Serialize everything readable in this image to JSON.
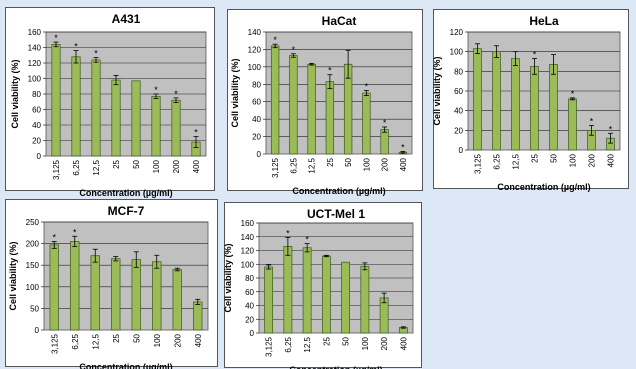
{
  "background": "#dde8f6",
  "plot_bg": "#c0c0c0",
  "bar_color": "#9bbb59",
  "bar_border": "#3a5a1a",
  "chart_data": [
    {
      "type": "bar",
      "title": "A431",
      "xlabel": "Concentration (µg/ml)",
      "ylabel": "Cell viability (%)",
      "categories": [
        "3,125",
        "6,25",
        "12,5",
        "25",
        "50",
        "100",
        "200",
        "400"
      ],
      "values": [
        144,
        128,
        124,
        98,
        97,
        77,
        72,
        18
      ],
      "errors": [
        3,
        8,
        3,
        6,
        0,
        3,
        3,
        7
      ],
      "significant": [
        true,
        true,
        true,
        false,
        false,
        true,
        true,
        true
      ],
      "ylim": [
        0,
        160
      ],
      "yticks": [
        0,
        20,
        40,
        60,
        80,
        100,
        120,
        140,
        160
      ],
      "grid": true
    },
    {
      "type": "bar",
      "title": "HaCat",
      "xlabel": "Concentration (µg/ml)",
      "ylabel": "Cell viability (%)",
      "categories": [
        "3,125",
        "6,25",
        "12,5",
        "25",
        "50",
        "100",
        "200",
        "400"
      ],
      "values": [
        124,
        113,
        103,
        83,
        103,
        70,
        28,
        2
      ],
      "errors": [
        2,
        2,
        1,
        8,
        16,
        3,
        3,
        1
      ],
      "significant": [
        true,
        true,
        false,
        true,
        false,
        true,
        true,
        true
      ],
      "ylim": [
        0,
        140
      ],
      "yticks": [
        0,
        20,
        40,
        60,
        80,
        100,
        120,
        140
      ],
      "grid": true
    },
    {
      "type": "bar",
      "title": "HeLa",
      "xlabel": "Concentration (µg/ml)",
      "ylabel": "Cell viability (%)",
      "categories": [
        "3,125",
        "6,25",
        "12,5",
        "25",
        "50",
        "100",
        "200",
        "400"
      ],
      "values": [
        103,
        100,
        93,
        85,
        87,
        52,
        20,
        12
      ],
      "errors": [
        5,
        6,
        7,
        8,
        10,
        1,
        5,
        5
      ],
      "significant": [
        false,
        false,
        false,
        true,
        false,
        true,
        true,
        true
      ],
      "ylim": [
        0,
        120
      ],
      "yticks": [
        0,
        20,
        40,
        60,
        80,
        100,
        120
      ],
      "grid": true
    },
    {
      "type": "bar",
      "title": "MCF-7",
      "xlabel": "Concentration (µg/ml)",
      "ylabel": "Cell viability (%)",
      "categories": [
        "3,125",
        "6,25",
        "12,5",
        "25",
        "50",
        "100",
        "200",
        "400"
      ],
      "values": [
        197,
        205,
        172,
        165,
        163,
        158,
        140,
        65
      ],
      "errors": [
        8,
        12,
        15,
        5,
        18,
        15,
        3,
        6
      ],
      "significant": [
        true,
        true,
        false,
        false,
        false,
        false,
        false,
        false
      ],
      "ylim": [
        0,
        250
      ],
      "yticks": [
        0,
        50,
        100,
        150,
        200,
        250
      ],
      "grid": true
    },
    {
      "type": "bar",
      "title": "UCT-Mel 1",
      "xlabel": "Concentration (µg/ml)",
      "ylabel": "Cell viability (%)",
      "categories": [
        "3,125",
        "6,25",
        "12,5",
        "25",
        "50",
        "100",
        "200",
        "400"
      ],
      "values": [
        96,
        126,
        124,
        112,
        103,
        97,
        51,
        8
      ],
      "errors": [
        3,
        13,
        6,
        1,
        0,
        5,
        7,
        1
      ],
      "significant": [
        false,
        true,
        true,
        false,
        false,
        false,
        false,
        false
      ],
      "ylim": [
        0,
        160
      ],
      "yticks": [
        0,
        20,
        40,
        60,
        80,
        100,
        120,
        140,
        160
      ],
      "grid": true
    }
  ]
}
